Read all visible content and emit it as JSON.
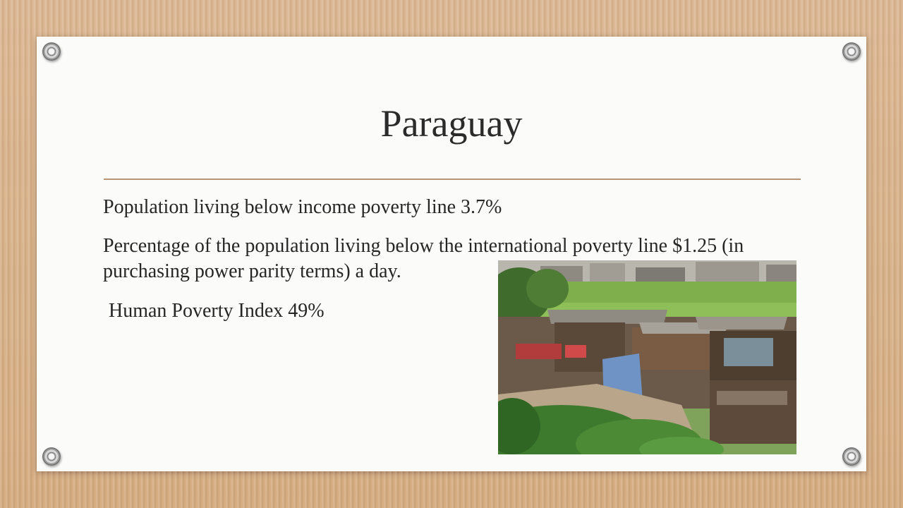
{
  "slide": {
    "title": "Paraguay",
    "lines": [
      "Population living below income poverty line 3.7%",
      "Percentage of the population living below the international poverty line $1.25 (in purchasing power parity terms) a day.",
      "Human Poverty Index 49%"
    ]
  },
  "colors": {
    "background": "#d9b48c",
    "card": "#fbfbfa",
    "rule": "#b79473",
    "text": "#262626"
  }
}
